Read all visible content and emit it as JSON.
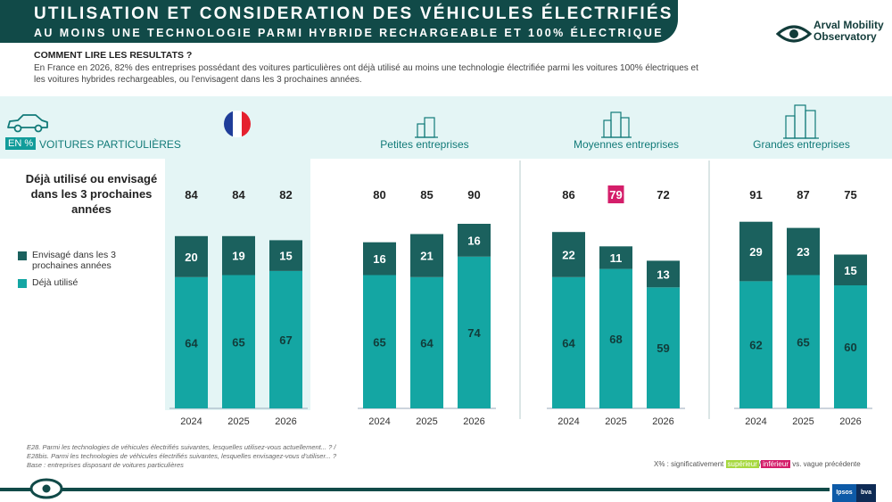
{
  "header": {
    "title": "UTILISATION ET CONSIDERATION DES VÉHICULES ÉLECTRIFIÉS",
    "subtitle": "AU MOINS UNE TECHNOLOGIE PARMI HYBRIDE RECHARGEABLE ET 100% ÉLECTRIQUE"
  },
  "brand": {
    "line1": "Arval Mobility",
    "line2": "Observatory",
    "icon": "eye-logo-icon"
  },
  "how_to_read": {
    "title": "COMMENT LIRE LES RESULTATS ?",
    "text": "En France en 2026, 82% des entreprises possédant des voitures particulières ont déjà utilisé au moins une technologie électrifiée parmi les voitures 100% électriques et les voitures hybrides rechargeables, ou l'envisagent dans les 3 prochaines années."
  },
  "row_header": {
    "unit_badge": "EN %",
    "label": "VOITURES PARTICULIÈRES",
    "icon": "car-icon"
  },
  "question": "Déjà utilisé ou envisagé dans les 3 prochaines années",
  "legend": [
    {
      "label": "Envisagé dans les 3 prochaines années",
      "color": "#1b615e"
    },
    {
      "label": "Déjà utilisé",
      "color": "#14a6a3"
    }
  ],
  "colors": {
    "dark_teal": "#1b615e",
    "teal": "#14a6a3",
    "significant_higher": "#a6d83e",
    "significant_lower": "#d41e6a",
    "header_bg": "#114a48",
    "france_bg": "#e4f5f5"
  },
  "chart_data": {
    "type": "bar",
    "stacked": true,
    "groups": [
      {
        "name": "",
        "icon": "france-flag-icon",
        "categories": [
          "2024",
          "2025",
          "2026"
        ],
        "series": [
          {
            "name": "Déjà utilisé",
            "values": [
              64,
              65,
              67
            ]
          },
          {
            "name": "Envisagé dans les 3 prochaines années",
            "values": [
              20,
              19,
              15
            ]
          }
        ],
        "totals": [
          84,
          84,
          82
        ],
        "total_highlight": [
          null,
          null,
          null
        ]
      },
      {
        "name": "Petites entreprises",
        "icon": "small-building-icon",
        "categories": [
          "2024",
          "2025",
          "2026"
        ],
        "series": [
          {
            "name": "Déjà utilisé",
            "values": [
              65,
              64,
              74
            ]
          },
          {
            "name": "Envisagé dans les 3 prochaines années",
            "values": [
              16,
              21,
              16
            ]
          }
        ],
        "totals": [
          80,
          85,
          90
        ],
        "total_highlight": [
          null,
          null,
          null
        ]
      },
      {
        "name": "Moyennes entreprises",
        "icon": "medium-building-icon",
        "categories": [
          "2024",
          "2025",
          "2026"
        ],
        "series": [
          {
            "name": "Déjà utilisé",
            "values": [
              64,
              68,
              59
            ]
          },
          {
            "name": "Envisagé dans les 3 prochaines années",
            "values": [
              22,
              11,
              13
            ]
          }
        ],
        "totals": [
          86,
          79,
          72
        ],
        "total_highlight": [
          null,
          "lower",
          null
        ]
      },
      {
        "name": "Grandes entreprises",
        "icon": "large-building-icon",
        "categories": [
          "2024",
          "2025",
          "2026"
        ],
        "series": [
          {
            "name": "Déjà utilisé",
            "values": [
              62,
              65,
              60
            ]
          },
          {
            "name": "Envisagé dans les 3 prochaines années",
            "values": [
              29,
              23,
              15
            ]
          }
        ],
        "totals": [
          91,
          87,
          75
        ],
        "total_highlight": [
          null,
          null,
          null
        ]
      }
    ],
    "ylim": [
      0,
      100
    ]
  },
  "footnotes": {
    "line1": "E28. Parmi les technologies de véhicules électrifiés suivantes, lesquelles utilisez-vous actuellement... ? /",
    "line2": "E28bis. Parmi les technologies de véhicules électrifiés suivantes, lesquelles envisagez-vous d'utiliser... ?",
    "line3": "Base : entreprises disposant de voitures particulières"
  },
  "significance": {
    "prefix": "X% : significativement",
    "higher": "supérieur",
    "sep": "/",
    "lower": "inférieur",
    "suffix": "vs. vague précédente"
  },
  "partners": {
    "ipsos": "Ipsos",
    "bva": "bva"
  }
}
